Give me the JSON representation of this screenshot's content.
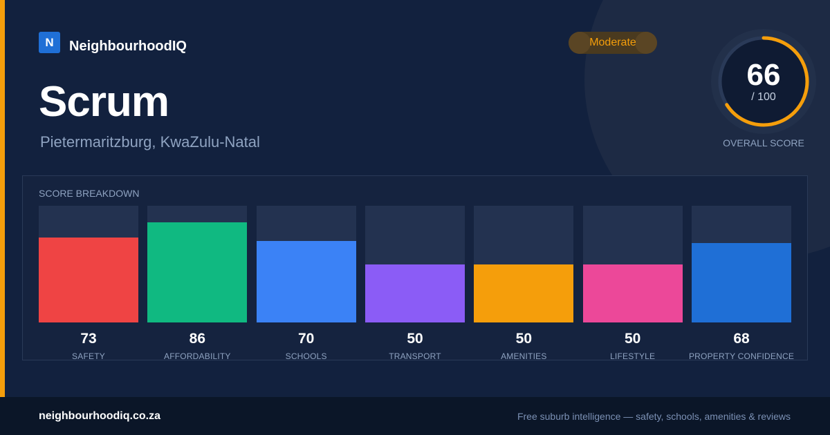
{
  "brand": {
    "logo_letter": "N",
    "name": "NeighbourhoodIQ"
  },
  "suburb": {
    "name": "Scrum",
    "location": "Pietermaritzburg, KwaZulu-Natal"
  },
  "rating_badge": "Moderate",
  "overall": {
    "score": "66",
    "out_of": "/ 100",
    "label": "OVERALL SCORE",
    "fraction": 0.66,
    "color": "#f59e0b"
  },
  "breakdown": {
    "title": "SCORE BREAKDOWN",
    "items": [
      {
        "label": "SAFETY",
        "value": 73,
        "color": "#ef4444"
      },
      {
        "label": "AFFORDABILITY",
        "value": 86,
        "color": "#10b981"
      },
      {
        "label": "SCHOOLS",
        "value": 70,
        "color": "#3b82f6"
      },
      {
        "label": "TRANSPORT",
        "value": 50,
        "color": "#8b5cf6"
      },
      {
        "label": "AMENITIES",
        "value": 50,
        "color": "#f59e0b"
      },
      {
        "label": "LIFESTYLE",
        "value": 50,
        "color": "#ec4899"
      },
      {
        "label": "PROPERTY CONFIDENCE",
        "value": 68,
        "color": "#1f6fd6"
      }
    ]
  },
  "footer": {
    "url": "neighbourhoodiq.co.za",
    "tagline": "Free suburb intelligence — safety, schools, amenities & reviews"
  },
  "chart_data": {
    "type": "bar",
    "title": "SCORE BREAKDOWN",
    "categories": [
      "SAFETY",
      "AFFORDABILITY",
      "SCHOOLS",
      "TRANSPORT",
      "AMENITIES",
      "LIFESTYLE",
      "PROPERTY CONFIDENCE"
    ],
    "values": [
      73,
      86,
      70,
      50,
      50,
      50,
      68
    ],
    "ylim": [
      0,
      100
    ],
    "grid": false
  }
}
